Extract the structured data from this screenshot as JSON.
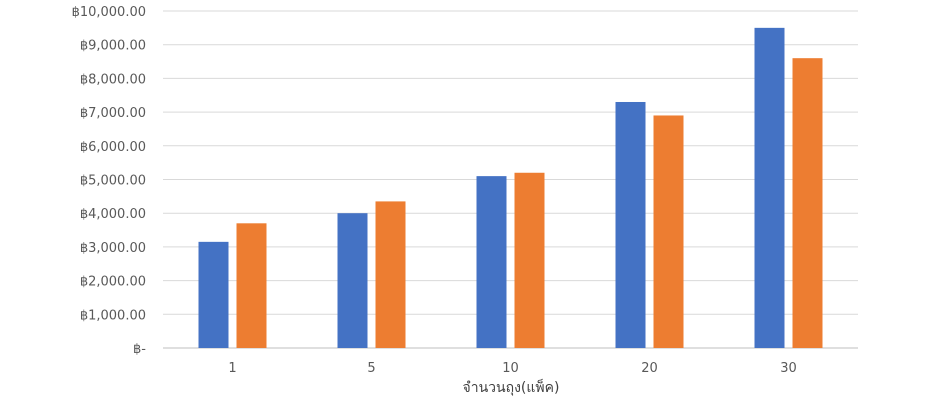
{
  "chart_data": {
    "type": "bar",
    "title": "",
    "xlabel": "จำนวนถุง(แพ็ค)",
    "ylabel": "",
    "categories": [
      "1",
      "5",
      "10",
      "20",
      "30"
    ],
    "series": [
      {
        "values": [
          3150,
          4000,
          5100,
          7300,
          9500
        ]
      },
      {
        "values": [
          3700,
          4350,
          5200,
          6900,
          8600
        ]
      }
    ],
    "ylim": [
      0,
      10000
    ],
    "yticks": [
      0,
      1000,
      2000,
      3000,
      4000,
      5000,
      6000,
      7000,
      8000,
      9000,
      10000
    ],
    "ytick_labels": [
      "฿-",
      "฿1,000.00",
      "฿2,000.00",
      "฿3,000.00",
      "฿4,000.00",
      "฿5,000.00",
      "฿6,000.00",
      "฿7,000.00",
      "฿8,000.00",
      "฿9,000.00",
      "฿10,000.00"
    ],
    "grid": true,
    "legend": "none",
    "colors": [
      "#4472C4",
      "#ED7D31"
    ]
  }
}
